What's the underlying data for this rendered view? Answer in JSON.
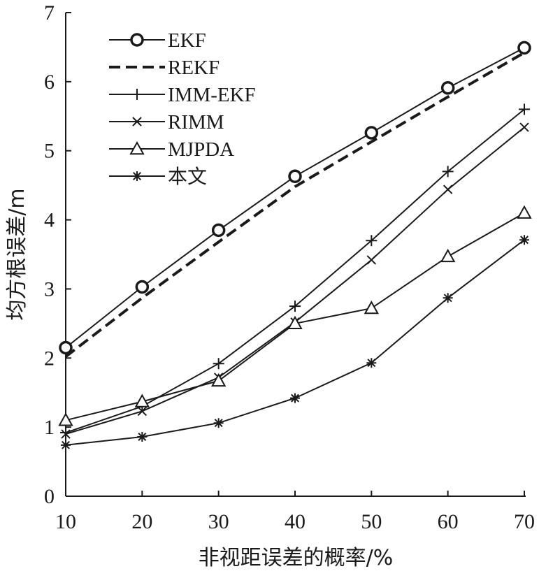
{
  "chart_data": {
    "type": "line",
    "xlabel": "非视距误差的概率/%",
    "ylabel": "均方根误差/m",
    "xlim": [
      10,
      70
    ],
    "ylim": [
      0,
      7
    ],
    "xticks": [
      "10",
      "20",
      "30",
      "40",
      "50",
      "60",
      "70"
    ],
    "yticks": [
      "0",
      "1",
      "2",
      "3",
      "4",
      "5",
      "6",
      "7"
    ],
    "grid": false,
    "legend_position": "top-left",
    "x": [
      10,
      20,
      30,
      40,
      50,
      60,
      70
    ],
    "series": [
      {
        "name": "EKF",
        "marker": "circle",
        "dash": false,
        "values": [
          2.15,
          3.03,
          3.85,
          4.63,
          5.26,
          5.91,
          6.49
        ]
      },
      {
        "name": "REKF",
        "marker": "none",
        "dash": true,
        "values": [
          2.02,
          2.87,
          3.68,
          4.48,
          5.13,
          5.78,
          6.42
        ]
      },
      {
        "name": "IMM-EKF",
        "marker": "plus",
        "dash": false,
        "values": [
          0.92,
          1.3,
          1.92,
          2.75,
          3.7,
          4.7,
          5.6
        ]
      },
      {
        "name": "RIMM",
        "marker": "x",
        "dash": false,
        "values": [
          0.9,
          1.23,
          1.72,
          2.52,
          3.42,
          4.44,
          5.34
        ]
      },
      {
        "name": "MJPDA",
        "marker": "triangle",
        "dash": false,
        "values": [
          1.1,
          1.37,
          1.67,
          2.5,
          2.72,
          3.47,
          4.1
        ]
      },
      {
        "name": "本文",
        "marker": "asterisk",
        "dash": false,
        "values": [
          0.74,
          0.86,
          1.06,
          1.42,
          1.93,
          2.87,
          3.71
        ]
      }
    ],
    "colors": {
      "line": "#1a1a1a",
      "background": "#ffffff"
    }
  }
}
